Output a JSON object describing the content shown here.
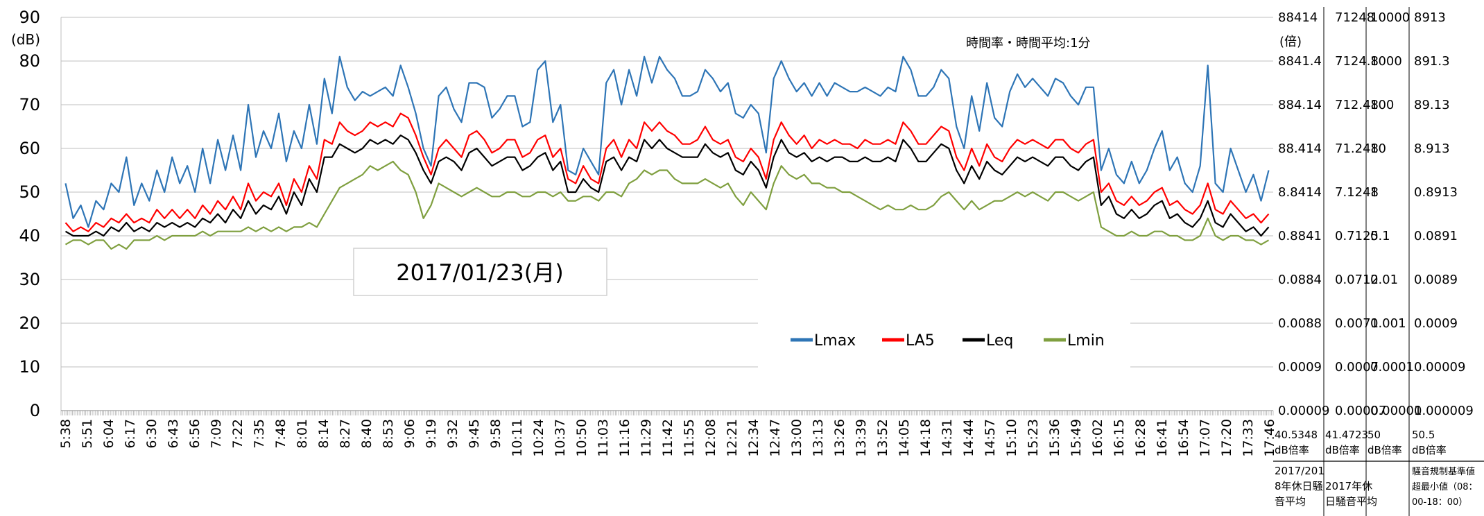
{
  "chart_data": {
    "type": "line",
    "title": "2017/01/23(月)",
    "annotation": "時間率・時間平均:1分",
    "ylabel": "(dB)",
    "ylim": [
      0,
      90
    ],
    "yticks": [
      "0",
      "10",
      "20",
      "30",
      "40",
      "50",
      "60",
      "70",
      "80",
      "90"
    ],
    "xlabels": [
      "5:38",
      "5:51",
      "6:04",
      "6:17",
      "6:30",
      "6:43",
      "6:56",
      "7:09",
      "7:22",
      "7:35",
      "7:48",
      "8:01",
      "8:14",
      "8:27",
      "8:40",
      "8:53",
      "9:06",
      "9:19",
      "9:32",
      "9:45",
      "9:58",
      "10:11",
      "10:24",
      "10:37",
      "10:50",
      "11:03",
      "11:16",
      "11:29",
      "11:42",
      "11:55",
      "12:08",
      "12:21",
      "12:34",
      "12:47",
      "13:00",
      "13:13",
      "13:26",
      "13:39",
      "13:52",
      "14:05",
      "14:18",
      "14:31",
      "14:44",
      "14:57",
      "15:10",
      "15:23",
      "15:36",
      "15:49",
      "16:02",
      "16:15",
      "16:28",
      "16:41",
      "16:54",
      "17:07",
      "17:20",
      "17:33",
      "17:46"
    ],
    "x_start": "5:38",
    "x_end": "17:55",
    "x_interval_minutes": 1,
    "grid": true,
    "legend_position": "bottom-center",
    "series": [
      {
        "name": "Lmax",
        "color": "#2e75b6",
        "values": [
          52,
          44,
          47,
          42,
          48,
          46,
          52,
          50,
          58,
          47,
          52,
          48,
          55,
          50,
          58,
          52,
          56,
          50,
          60,
          52,
          62,
          55,
          63,
          55,
          70,
          58,
          64,
          60,
          68,
          57,
          64,
          60,
          70,
          61,
          76,
          68,
          81,
          74,
          71,
          73,
          72,
          73,
          74,
          72,
          79,
          74,
          68,
          60,
          56,
          72,
          74,
          69,
          66,
          75,
          75,
          74,
          67,
          69,
          72,
          72,
          65,
          66,
          78,
          80,
          66,
          70,
          55,
          54,
          60,
          57,
          54,
          75,
          78,
          70,
          78,
          72,
          81,
          75,
          81,
          78,
          76,
          72,
          72,
          73,
          78,
          76,
          73,
          75,
          68,
          67,
          70,
          68,
          59,
          76,
          80,
          76,
          73,
          75,
          72,
          75,
          72,
          75,
          74,
          73,
          73,
          74,
          73,
          72,
          74,
          73,
          81,
          78,
          72,
          72,
          74,
          78,
          76,
          65,
          60,
          72,
          64,
          75,
          67,
          65,
          73,
          77,
          74,
          76,
          74,
          72,
          76,
          75,
          72,
          70,
          74,
          74,
          55,
          60,
          54,
          52,
          57,
          52,
          55,
          60,
          64,
          55,
          58,
          52,
          50,
          56,
          79,
          52,
          50,
          60,
          55,
          50,
          54,
          48,
          55
        ]
      },
      {
        "name": "LA5",
        "color": "#ff0000",
        "values": [
          43,
          41,
          42,
          41,
          43,
          42,
          44,
          43,
          45,
          43,
          44,
          43,
          46,
          44,
          46,
          44,
          46,
          44,
          47,
          45,
          48,
          46,
          49,
          46,
          52,
          48,
          50,
          49,
          52,
          47,
          53,
          50,
          56,
          53,
          62,
          61,
          66,
          64,
          63,
          64,
          66,
          65,
          66,
          65,
          68,
          67,
          63,
          58,
          54,
          60,
          62,
          60,
          58,
          63,
          64,
          62,
          59,
          60,
          62,
          62,
          58,
          59,
          62,
          63,
          58,
          60,
          53,
          52,
          56,
          53,
          52,
          60,
          62,
          58,
          62,
          60,
          66,
          64,
          66,
          64,
          63,
          61,
          61,
          62,
          65,
          62,
          61,
          62,
          58,
          57,
          60,
          58,
          53,
          62,
          66,
          63,
          61,
          63,
          60,
          62,
          61,
          62,
          61,
          61,
          60,
          62,
          61,
          61,
          62,
          61,
          66,
          64,
          61,
          61,
          63,
          65,
          64,
          58,
          55,
          60,
          56,
          61,
          58,
          57,
          60,
          62,
          61,
          62,
          61,
          60,
          62,
          62,
          60,
          59,
          61,
          62,
          50,
          52,
          48,
          47,
          49,
          47,
          48,
          50,
          51,
          47,
          48,
          46,
          45,
          47,
          52,
          46,
          45,
          48,
          46,
          44,
          45,
          43,
          45
        ]
      },
      {
        "name": "Leq",
        "color": "#000000",
        "values": [
          41,
          40,
          40,
          40,
          41,
          40,
          42,
          41,
          43,
          41,
          42,
          41,
          43,
          42,
          43,
          42,
          43,
          42,
          44,
          43,
          45,
          43,
          46,
          44,
          48,
          45,
          47,
          46,
          49,
          45,
          50,
          47,
          53,
          50,
          58,
          58,
          61,
          60,
          59,
          60,
          62,
          61,
          62,
          61,
          63,
          62,
          59,
          55,
          52,
          57,
          58,
          57,
          55,
          59,
          60,
          58,
          56,
          57,
          58,
          58,
          55,
          56,
          58,
          59,
          55,
          57,
          50,
          50,
          53,
          51,
          50,
          57,
          58,
          55,
          58,
          57,
          62,
          60,
          62,
          60,
          59,
          58,
          58,
          58,
          61,
          59,
          58,
          59,
          55,
          54,
          57,
          55,
          51,
          58,
          62,
          59,
          58,
          59,
          57,
          58,
          57,
          58,
          58,
          57,
          57,
          58,
          57,
          57,
          58,
          57,
          62,
          60,
          57,
          57,
          59,
          61,
          60,
          55,
          52,
          56,
          53,
          57,
          55,
          54,
          56,
          58,
          57,
          58,
          57,
          56,
          58,
          58,
          56,
          55,
          57,
          58,
          47,
          49,
          45,
          44,
          46,
          44,
          45,
          47,
          48,
          44,
          45,
          43,
          42,
          44,
          48,
          43,
          42,
          45,
          43,
          41,
          42,
          40,
          42
        ]
      },
      {
        "name": "Lmin",
        "color": "#7f9f3f",
        "values": [
          38,
          39,
          39,
          38,
          39,
          39,
          37,
          38,
          37,
          39,
          39,
          39,
          40,
          39,
          40,
          40,
          40,
          40,
          41,
          40,
          41,
          41,
          41,
          41,
          42,
          41,
          42,
          41,
          42,
          41,
          42,
          42,
          43,
          42,
          45,
          48,
          51,
          52,
          53,
          54,
          56,
          55,
          56,
          57,
          55,
          54,
          50,
          44,
          47,
          52,
          51,
          50,
          49,
          50,
          51,
          50,
          49,
          49,
          50,
          50,
          49,
          49,
          50,
          50,
          49,
          50,
          48,
          48,
          49,
          49,
          48,
          50,
          50,
          49,
          52,
          53,
          55,
          54,
          55,
          55,
          53,
          52,
          52,
          52,
          53,
          52,
          51,
          52,
          49,
          47,
          50,
          48,
          46,
          52,
          56,
          54,
          53,
          54,
          52,
          52,
          51,
          51,
          50,
          50,
          49,
          48,
          47,
          46,
          47,
          46,
          46,
          47,
          46,
          46,
          47,
          49,
          50,
          48,
          46,
          48,
          46,
          47,
          48,
          48,
          49,
          50,
          49,
          50,
          49,
          48,
          50,
          50,
          49,
          48,
          49,
          50,
          42,
          41,
          40,
          40,
          41,
          40,
          40,
          41,
          41,
          40,
          40,
          39,
          39,
          40,
          44,
          40,
          39,
          40,
          40,
          39,
          39,
          38,
          39
        ]
      }
    ]
  },
  "right_axes": [
    {
      "unit": "(倍)",
      "ticks": [
        "88414",
        "8841.4",
        "884.14",
        "88.414",
        "8.8414",
        "0.8841",
        "0.0884",
        "0.0088",
        "0.0009",
        "0.00009"
      ],
      "foot_value": "40.5348",
      "foot_unit": "dB倍率",
      "caption": "2017/2018年休日騒音平均"
    },
    {
      "unit": "",
      "ticks": [
        "71248",
        "7124.8",
        "712.48",
        "71.248",
        "7.1248",
        "0.7125",
        "0.0712",
        "0.0071",
        "0.0007",
        "0.00007"
      ],
      "foot_value": "41.4723",
      "foot_unit": "dB倍率",
      "caption": "2017年休日騒音平均"
    },
    {
      "unit": "",
      "ticks": [
        "10000",
        "1000",
        "100",
        "10",
        "1",
        "0.1",
        "0.01",
        "0.001",
        "0.0001",
        "0.00001"
      ],
      "foot_value": "50",
      "foot_unit": "dB倍率",
      "caption": ""
    },
    {
      "unit": "",
      "ticks": [
        "8913",
        "891.3",
        "89.13",
        "8.913",
        "0.8913",
        "0.0891",
        "0.0089",
        "0.0009",
        "0.00009",
        "0.000009"
      ],
      "foot_value": "50.5",
      "foot_unit": "dB倍率",
      "caption": "騒音規制基準値超最小値（08：00-18：00）"
    }
  ]
}
